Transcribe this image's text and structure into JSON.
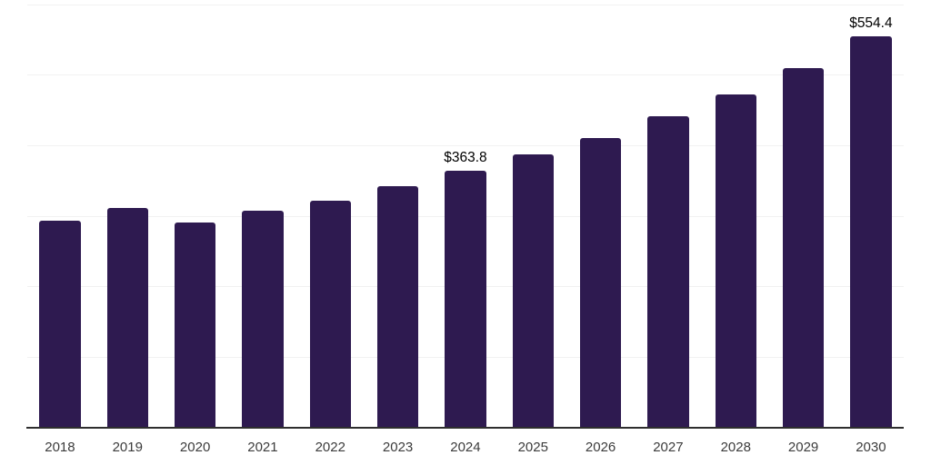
{
  "chart_data": {
    "type": "bar",
    "title": "",
    "xlabel": "",
    "ylabel": "",
    "categories": [
      "2018",
      "2019",
      "2020",
      "2021",
      "2022",
      "2023",
      "2024",
      "2025",
      "2026",
      "2027",
      "2028",
      "2029",
      "2030"
    ],
    "values": [
      292.6,
      310.5,
      290.1,
      307.4,
      321.1,
      342.4,
      363.8,
      386.3,
      410.6,
      440.4,
      471.6,
      508.7,
      554.4
    ],
    "value_labels": [
      {
        "category": "2024",
        "text": "$363.8"
      },
      {
        "category": "2030",
        "text": "$554.4"
      }
    ],
    "ylim": [
      0,
      600
    ],
    "gridline_interval": 100,
    "grid": "horizontal-only",
    "legend": "none",
    "y_axis_tick_labels": "none"
  },
  "colors": {
    "bar": "#2E1A50",
    "axis_line": "#2e2e2e",
    "gridline": "#f1f1f1",
    "tick_label": "#3c3c3c",
    "value_label": "#000000",
    "background": "#ffffff"
  }
}
